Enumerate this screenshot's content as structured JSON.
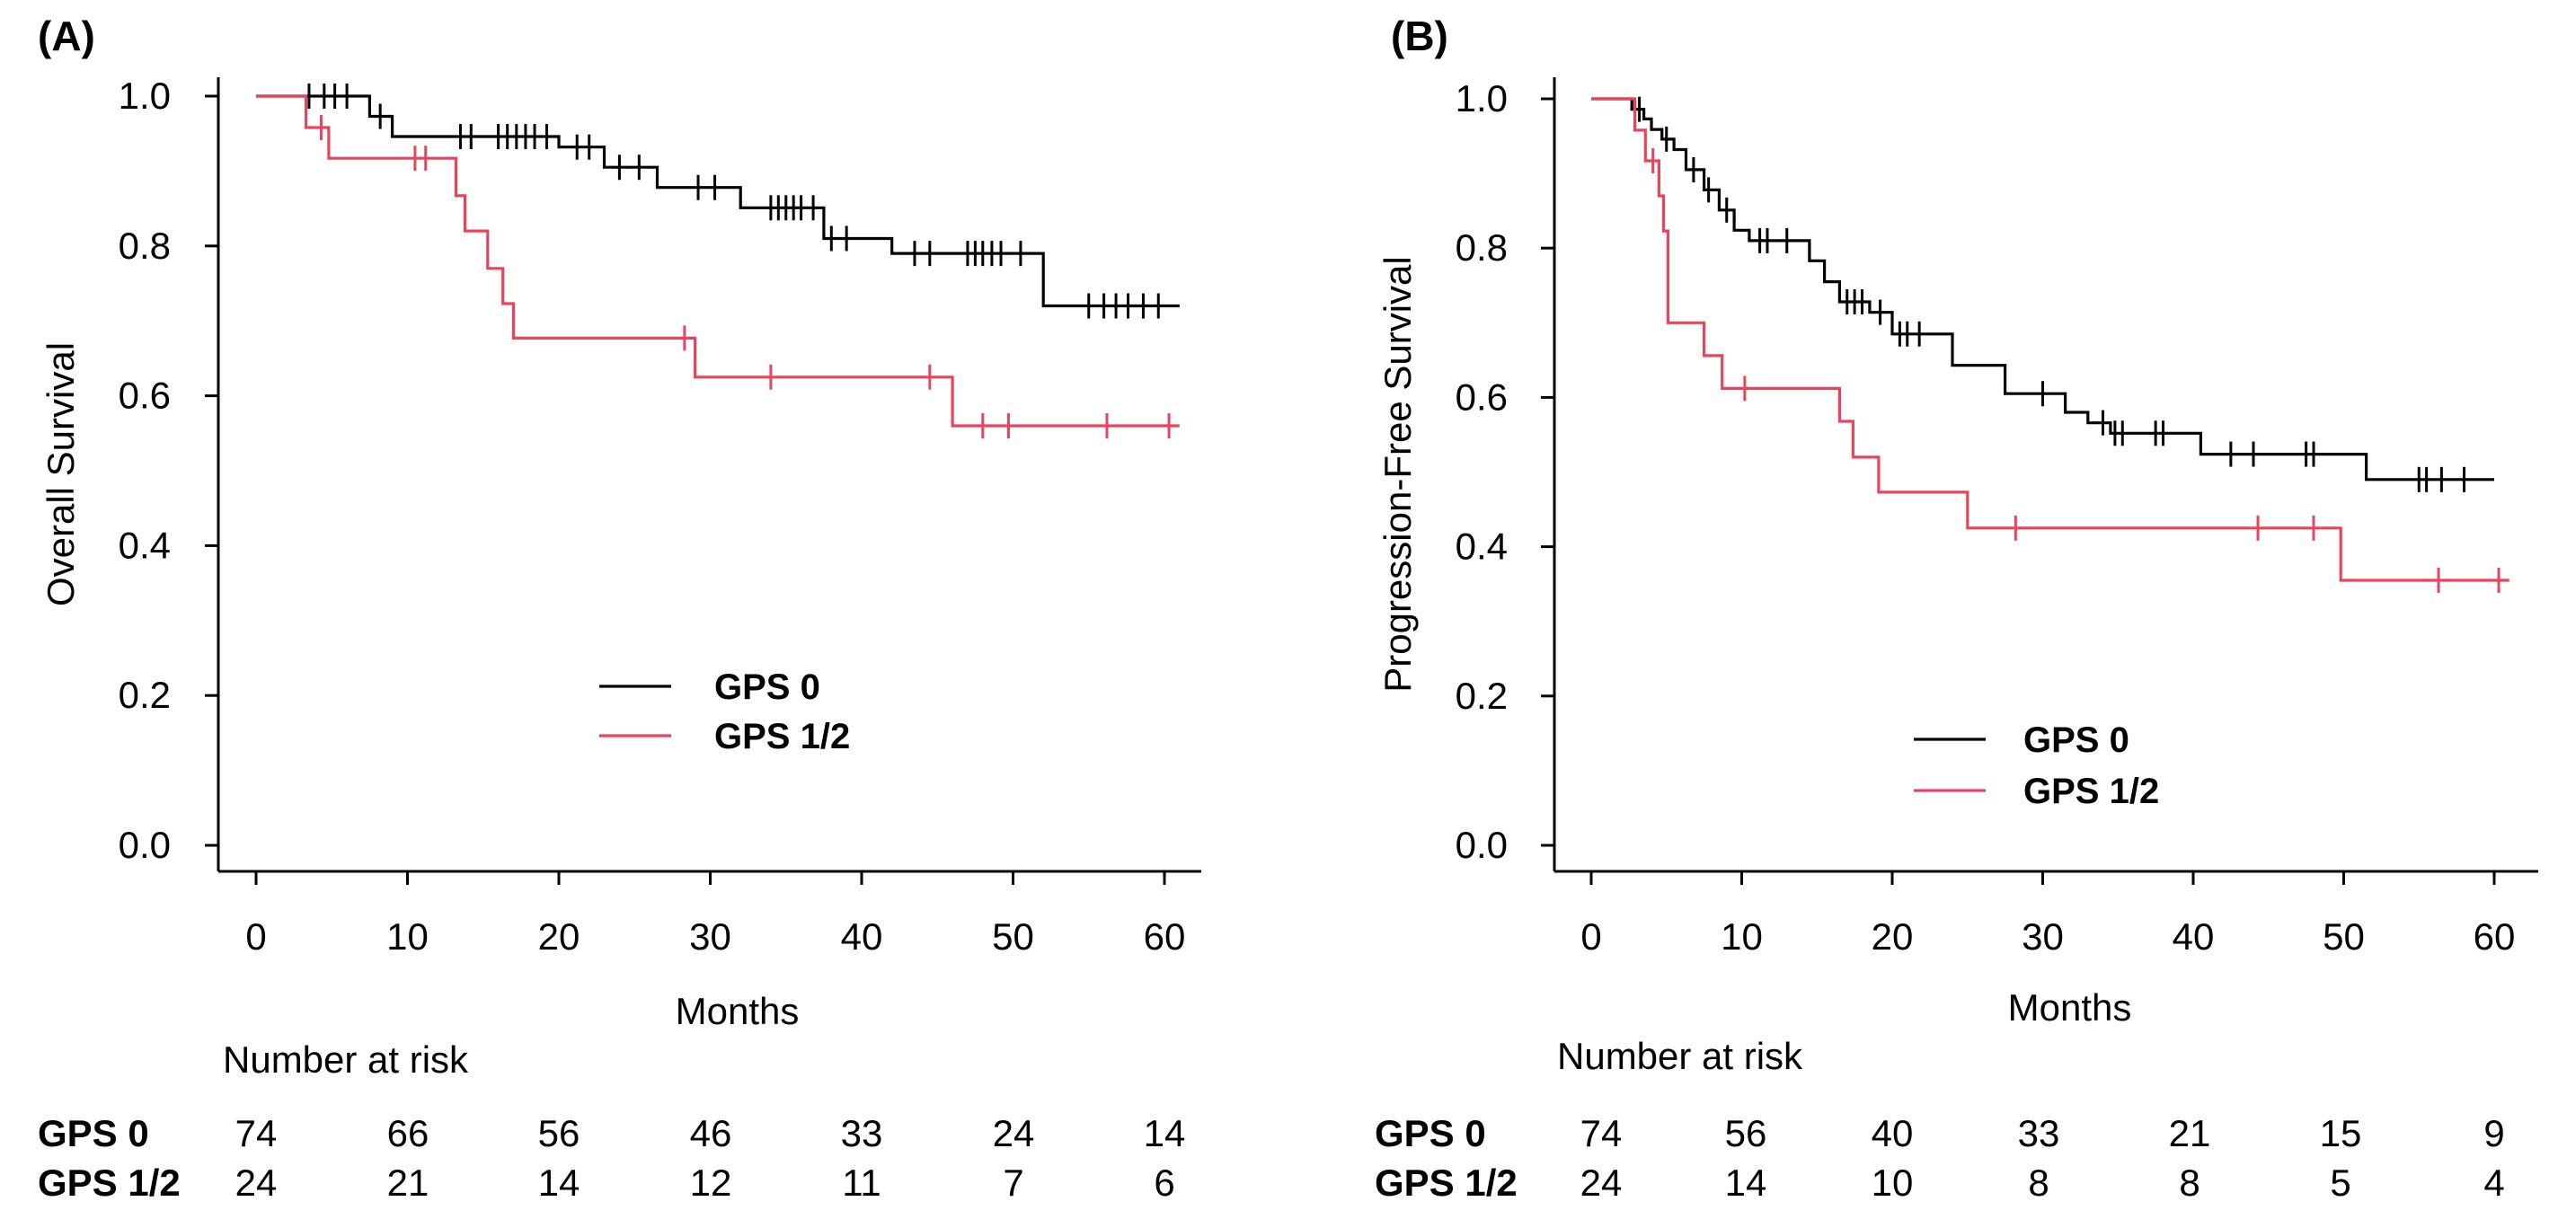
{
  "chart_data": [
    {
      "type": "line",
      "subtype": "kaplan-meier",
      "panel_label": "(A)",
      "xlabel": "Months",
      "ylabel": "Overall Survival",
      "xlim": [
        0,
        60
      ],
      "ylim": [
        0,
        1
      ],
      "xticks": [
        "0",
        "10",
        "20",
        "30",
        "40",
        "50",
        "60"
      ],
      "yticks": [
        "0.0",
        "0.2",
        "0.4",
        "0.6",
        "0.8",
        "1.0"
      ],
      "legend_position": "center",
      "series": [
        {
          "name": "GPS 0",
          "color": "#000000",
          "steps": [
            [
              0,
              1.0
            ],
            [
              7.5,
              1.0
            ],
            [
              7.5,
              0.973
            ],
            [
              9.0,
              0.973
            ],
            [
              9.0,
              0.946
            ],
            [
              20.0,
              0.946
            ],
            [
              20.0,
              0.932
            ],
            [
              23.0,
              0.932
            ],
            [
              23.0,
              0.905
            ],
            [
              26.5,
              0.905
            ],
            [
              26.5,
              0.878
            ],
            [
              32.0,
              0.878
            ],
            [
              32.0,
              0.851
            ],
            [
              37.5,
              0.851
            ],
            [
              37.5,
              0.81
            ],
            [
              42.0,
              0.81
            ],
            [
              42.0,
              0.79
            ],
            [
              52.0,
              0.79
            ],
            [
              52.0,
              0.72
            ],
            [
              61.0,
              0.72
            ]
          ],
          "censors": [
            [
              3.5,
              1.0
            ],
            [
              4.5,
              1.0
            ],
            [
              5.2,
              1.0
            ],
            [
              6.0,
              1.0
            ],
            [
              8.2,
              0.973
            ],
            [
              13.5,
              0.946
            ],
            [
              14.2,
              0.946
            ],
            [
              16.0,
              0.946
            ],
            [
              16.6,
              0.946
            ],
            [
              17.2,
              0.946
            ],
            [
              17.8,
              0.946
            ],
            [
              18.4,
              0.946
            ],
            [
              19.2,
              0.946
            ],
            [
              21.2,
              0.932
            ],
            [
              22.0,
              0.932
            ],
            [
              24.0,
              0.905
            ],
            [
              25.3,
              0.905
            ],
            [
              29.2,
              0.878
            ],
            [
              30.3,
              0.878
            ],
            [
              34.0,
              0.851
            ],
            [
              34.5,
              0.851
            ],
            [
              35.0,
              0.851
            ],
            [
              35.5,
              0.851
            ],
            [
              36.0,
              0.851
            ],
            [
              36.8,
              0.851
            ],
            [
              38.0,
              0.81
            ],
            [
              39.0,
              0.81
            ],
            [
              43.5,
              0.79
            ],
            [
              44.5,
              0.79
            ],
            [
              47.0,
              0.79
            ],
            [
              47.5,
              0.79
            ],
            [
              48.0,
              0.79
            ],
            [
              48.6,
              0.79
            ],
            [
              49.2,
              0.79
            ],
            [
              50.5,
              0.79
            ],
            [
              55.0,
              0.72
            ],
            [
              56.0,
              0.72
            ],
            [
              56.8,
              0.72
            ],
            [
              57.6,
              0.72
            ],
            [
              58.6,
              0.72
            ],
            [
              59.6,
              0.72
            ]
          ]
        },
        {
          "name": "GPS 1/2",
          "color": "#e8455d",
          "steps": [
            [
              0,
              1.0
            ],
            [
              3.3,
              1.0
            ],
            [
              3.3,
              0.958
            ],
            [
              4.8,
              0.958
            ],
            [
              4.8,
              0.917
            ],
            [
              13.2,
              0.917
            ],
            [
              13.2,
              0.867
            ],
            [
              13.8,
              0.867
            ],
            [
              13.8,
              0.82
            ],
            [
              15.3,
              0.82
            ],
            [
              15.3,
              0.77
            ],
            [
              16.3,
              0.77
            ],
            [
              16.3,
              0.723
            ],
            [
              17.0,
              0.723
            ],
            [
              17.0,
              0.677
            ],
            [
              29.0,
              0.677
            ],
            [
              29.0,
              0.625
            ],
            [
              46.0,
              0.625
            ],
            [
              46.0,
              0.56
            ],
            [
              61.0,
              0.56
            ]
          ],
          "censors": [
            [
              4.3,
              0.958
            ],
            [
              10.5,
              0.917
            ],
            [
              11.2,
              0.917
            ],
            [
              28.3,
              0.677
            ],
            [
              34.0,
              0.625
            ],
            [
              44.5,
              0.625
            ],
            [
              48.0,
              0.56
            ],
            [
              49.7,
              0.56
            ],
            [
              56.2,
              0.56
            ],
            [
              60.3,
              0.56
            ]
          ]
        }
      ],
      "risk_table": {
        "title": "Number at risk",
        "rows": [
          {
            "group": "GPS 0",
            "values": [
              "74",
              "66",
              "56",
              "46",
              "33",
              "24",
              "14"
            ]
          },
          {
            "group": "GPS 1/2",
            "values": [
              "24",
              "21",
              "14",
              "12",
              "11",
              "7",
              "6"
            ]
          }
        ]
      }
    },
    {
      "type": "line",
      "subtype": "kaplan-meier",
      "panel_label": "(B)",
      "xlabel": "Months",
      "ylabel": "Progression-Free Survival",
      "xlim": [
        0,
        60
      ],
      "ylim": [
        0,
        1
      ],
      "xticks": [
        "0",
        "10",
        "20",
        "30",
        "40",
        "50",
        "60"
      ],
      "yticks": [
        "0.0",
        "0.2",
        "0.4",
        "0.6",
        "0.8",
        "1.0"
      ],
      "legend_position": "center-left",
      "series": [
        {
          "name": "GPS 0",
          "color": "#000000",
          "steps": [
            [
              0,
              1.0
            ],
            [
              2.7,
              1.0
            ],
            [
              2.7,
              0.986
            ],
            [
              3.5,
              0.986
            ],
            [
              3.5,
              0.973
            ],
            [
              4.0,
              0.973
            ],
            [
              4.0,
              0.959
            ],
            [
              4.7,
              0.959
            ],
            [
              4.7,
              0.946
            ],
            [
              5.5,
              0.946
            ],
            [
              5.5,
              0.932
            ],
            [
              6.3,
              0.932
            ],
            [
              6.3,
              0.905
            ],
            [
              7.5,
              0.905
            ],
            [
              7.5,
              0.878
            ],
            [
              8.5,
              0.878
            ],
            [
              8.5,
              0.851
            ],
            [
              9.5,
              0.851
            ],
            [
              9.5,
              0.824
            ],
            [
              10.5,
              0.824
            ],
            [
              10.5,
              0.81
            ],
            [
              14.5,
              0.81
            ],
            [
              14.5,
              0.783
            ],
            [
              15.5,
              0.783
            ],
            [
              15.5,
              0.755
            ],
            [
              16.5,
              0.755
            ],
            [
              16.5,
              0.728
            ],
            [
              18.5,
              0.728
            ],
            [
              18.5,
              0.714
            ],
            [
              20.0,
              0.714
            ],
            [
              20.0,
              0.685
            ],
            [
              24.0,
              0.685
            ],
            [
              24.0,
              0.643
            ],
            [
              27.5,
              0.643
            ],
            [
              27.5,
              0.605
            ],
            [
              31.5,
              0.605
            ],
            [
              31.5,
              0.58
            ],
            [
              33.0,
              0.58
            ],
            [
              33.0,
              0.566
            ],
            [
              34.5,
              0.566
            ],
            [
              34.5,
              0.552
            ],
            [
              40.5,
              0.552
            ],
            [
              40.5,
              0.524
            ],
            [
              51.5,
              0.524
            ],
            [
              51.5,
              0.49
            ],
            [
              60.0,
              0.49
            ]
          ],
          "censors": [
            [
              3.2,
              0.986
            ],
            [
              5.0,
              0.946
            ],
            [
              6.8,
              0.905
            ],
            [
              7.8,
              0.878
            ],
            [
              9.0,
              0.851
            ],
            [
              11.2,
              0.81
            ],
            [
              11.7,
              0.81
            ],
            [
              13.0,
              0.81
            ],
            [
              17.0,
              0.728
            ],
            [
              17.5,
              0.728
            ],
            [
              18.0,
              0.728
            ],
            [
              19.2,
              0.714
            ],
            [
              20.5,
              0.685
            ],
            [
              21.0,
              0.685
            ],
            [
              21.8,
              0.685
            ],
            [
              30.0,
              0.605
            ],
            [
              34.0,
              0.566
            ],
            [
              34.8,
              0.552
            ],
            [
              35.3,
              0.552
            ],
            [
              37.5,
              0.552
            ],
            [
              38.0,
              0.552
            ],
            [
              42.5,
              0.524
            ],
            [
              44.0,
              0.524
            ],
            [
              47.5,
              0.524
            ],
            [
              48.0,
              0.524
            ],
            [
              55.0,
              0.49
            ],
            [
              55.5,
              0.49
            ],
            [
              56.5,
              0.49
            ],
            [
              58.0,
              0.49
            ]
          ]
        },
        {
          "name": "GPS 1/2",
          "color": "#e8455d",
          "steps": [
            [
              0,
              1.0
            ],
            [
              2.9,
              1.0
            ],
            [
              2.9,
              0.958
            ],
            [
              3.6,
              0.958
            ],
            [
              3.6,
              0.917
            ],
            [
              4.5,
              0.917
            ],
            [
              4.5,
              0.87
            ],
            [
              4.8,
              0.87
            ],
            [
              4.8,
              0.823
            ],
            [
              5.1,
              0.823
            ],
            [
              5.1,
              0.7
            ],
            [
              7.5,
              0.7
            ],
            [
              7.5,
              0.656
            ],
            [
              8.7,
              0.656
            ],
            [
              8.7,
              0.612
            ],
            [
              16.5,
              0.612
            ],
            [
              16.5,
              0.568
            ],
            [
              17.4,
              0.568
            ],
            [
              17.4,
              0.52
            ],
            [
              19.1,
              0.52
            ],
            [
              19.1,
              0.473
            ],
            [
              25.0,
              0.473
            ],
            [
              25.0,
              0.425
            ],
            [
              49.8,
              0.425
            ],
            [
              49.8,
              0.355
            ],
            [
              61.0,
              0.355
            ]
          ],
          "censors": [
            [
              4.1,
              0.917
            ],
            [
              10.2,
              0.612
            ],
            [
              28.2,
              0.425
            ],
            [
              44.3,
              0.425
            ],
            [
              48.0,
              0.425
            ],
            [
              56.3,
              0.355
            ],
            [
              60.3,
              0.355
            ]
          ]
        }
      ],
      "risk_table": {
        "title": "Number at risk",
        "rows": [
          {
            "group": "GPS 0",
            "values": [
              "74",
              "56",
              "40",
              "33",
              "21",
              "15",
              "9"
            ]
          },
          {
            "group": "GPS 1/2",
            "values": [
              "24",
              "14",
              "10",
              "8",
              "8",
              "5",
              "4"
            ]
          }
        ]
      }
    }
  ]
}
